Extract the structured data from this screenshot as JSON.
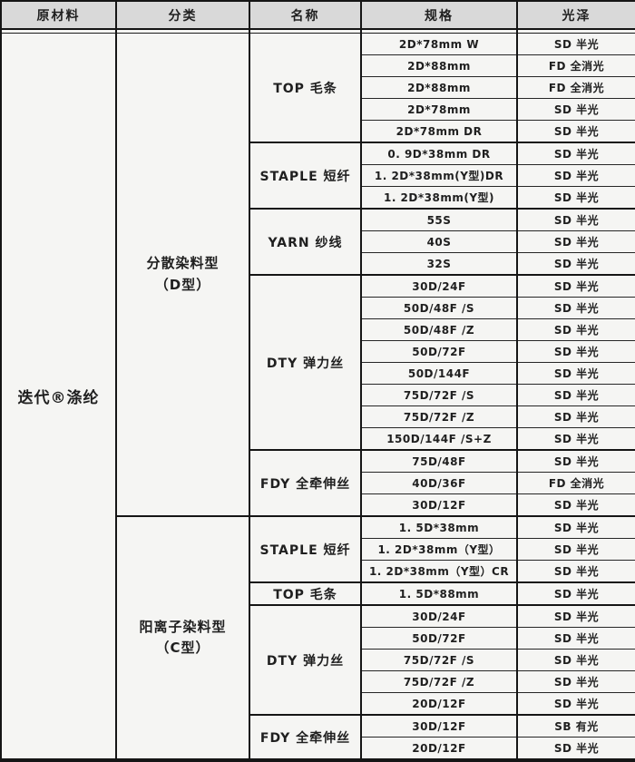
{
  "table": {
    "columns": [
      "原材料",
      "分类",
      "名称",
      "规格",
      "光泽"
    ],
    "material": "迭代®涤纶",
    "colors": {
      "header_bg": "#d9d9d9",
      "cell_bg": "#f5f5f3",
      "border": "#151515",
      "text": "#1f1f1f"
    },
    "categories": [
      {
        "label": "分散染料型\n（D型）",
        "groups": [
          {
            "name": "TOP 毛条",
            "rows": [
              {
                "spec": "2D*78mm W",
                "luster": "SD 半光"
              },
              {
                "spec": "2D*88mm",
                "luster": "FD 全消光"
              },
              {
                "spec": "2D*88mm",
                "luster": "FD 全消光"
              },
              {
                "spec": "2D*78mm",
                "luster": "SD 半光"
              },
              {
                "spec": "2D*78mm DR",
                "luster": "SD 半光"
              }
            ]
          },
          {
            "name": "STAPLE 短纤",
            "rows": [
              {
                "spec": "0. 9D*38mm DR",
                "luster": "SD 半光"
              },
              {
                "spec": "1. 2D*38mm(Y型)DR",
                "luster": "SD 半光"
              },
              {
                "spec": "1. 2D*38mm(Y型)",
                "luster": "SD 半光"
              }
            ]
          },
          {
            "name": "YARN 纱线",
            "rows": [
              {
                "spec": "55S",
                "luster": "SD 半光"
              },
              {
                "spec": "40S",
                "luster": "SD 半光"
              },
              {
                "spec": "32S",
                "luster": "SD 半光"
              }
            ]
          },
          {
            "name": "DTY 弹力丝",
            "rows": [
              {
                "spec": "30D/24F",
                "luster": "SD 半光"
              },
              {
                "spec": "50D/48F /S",
                "luster": "SD 半光"
              },
              {
                "spec": "50D/48F /Z",
                "luster": "SD 半光"
              },
              {
                "spec": "50D/72F",
                "luster": "SD 半光"
              },
              {
                "spec": "50D/144F",
                "luster": "SD 半光"
              },
              {
                "spec": "75D/72F /S",
                "luster": "SD 半光"
              },
              {
                "spec": "75D/72F /Z",
                "luster": "SD 半光"
              },
              {
                "spec": "150D/144F /S+Z",
                "luster": "SD 半光"
              }
            ]
          },
          {
            "name": "FDY 全牵伸丝",
            "rows": [
              {
                "spec": "75D/48F",
                "luster": "SD 半光"
              },
              {
                "spec": "40D/36F",
                "luster": "FD 全消光"
              },
              {
                "spec": "30D/12F",
                "luster": "SD 半光"
              }
            ]
          }
        ]
      },
      {
        "label": "阳离子染料型\n（C型）",
        "groups": [
          {
            "name": "STAPLE 短纤",
            "rows": [
              {
                "spec": "1. 5D*38mm",
                "luster": "SD 半光"
              },
              {
                "spec": "1. 2D*38mm（Y型）",
                "luster": "SD 半光"
              },
              {
                "spec": "1. 2D*38mm（Y型）CR",
                "luster": "SD 半光"
              }
            ]
          },
          {
            "name": "TOP 毛条",
            "rows": [
              {
                "spec": "1. 5D*88mm",
                "luster": "SD 半光"
              }
            ]
          },
          {
            "name": "DTY 弹力丝",
            "rows": [
              {
                "spec": "30D/24F",
                "luster": "SD 半光"
              },
              {
                "spec": "50D/72F",
                "luster": "SD 半光"
              },
              {
                "spec": "75D/72F /S",
                "luster": "SD 半光"
              },
              {
                "spec": "75D/72F /Z",
                "luster": "SD 半光"
              },
              {
                "spec": "20D/12F",
                "luster": "SD 半光"
              }
            ]
          },
          {
            "name": "FDY 全牵伸丝",
            "rows": [
              {
                "spec": "30D/12F",
                "luster": "SB 有光"
              },
              {
                "spec": "20D/12F",
                "luster": "SD 半光"
              }
            ]
          }
        ]
      }
    ]
  }
}
